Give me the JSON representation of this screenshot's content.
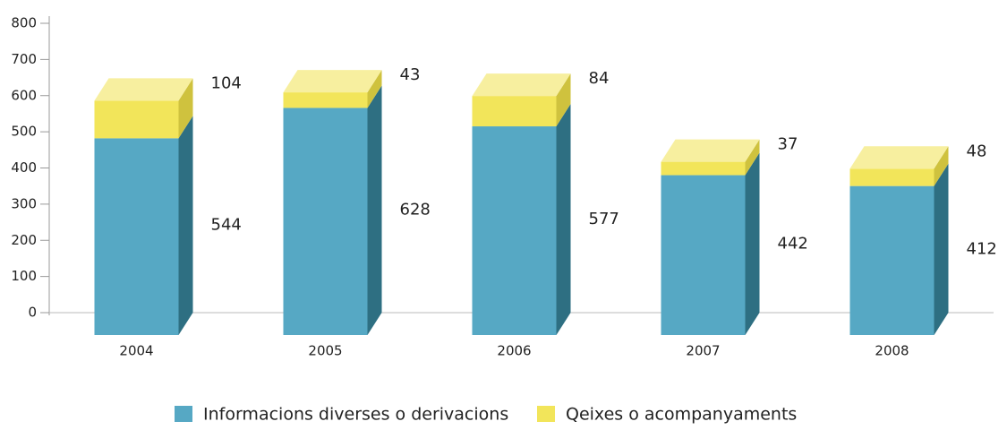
{
  "chart_data": {
    "type": "bar3d-stacked",
    "categories": [
      "2004",
      "2005",
      "2006",
      "2007",
      "2008"
    ],
    "series": [
      {
        "name": "Informacions diverses o derivacions",
        "color": "#56a8c4",
        "values": [
          544,
          628,
          577,
          442,
          412
        ]
      },
      {
        "name": "Qeixes o acompanyaments",
        "color": "#f2e55a",
        "values": [
          104,
          43,
          84,
          37,
          48
        ]
      }
    ],
    "ylim": [
      0,
      800
    ],
    "yticks": [
      0,
      100,
      200,
      300,
      400,
      500,
      600,
      700,
      800
    ]
  }
}
